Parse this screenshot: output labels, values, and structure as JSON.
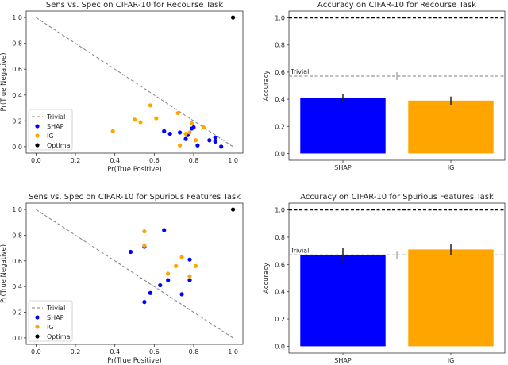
{
  "chart_data": [
    {
      "id": "scatter1",
      "type": "scatter",
      "title": "Sens vs. Spec on CIFAR-10 for Recourse Task",
      "xlabel": "Pr(True Positive)",
      "ylabel": "Pr(True Negative)",
      "xlim": [
        -0.05,
        1.05
      ],
      "ylim": [
        -0.05,
        1.05
      ],
      "xticks": [
        0.0,
        0.2,
        0.4,
        0.6,
        0.8,
        1.0
      ],
      "yticks": [
        0.0,
        0.2,
        0.4,
        0.6,
        0.8,
        1.0
      ],
      "xtick_labels": [
        "0.0",
        "0.2",
        "0.4",
        "0.6",
        "0.8",
        "1.0"
      ],
      "ytick_labels": [
        "0.0",
        "0.2",
        "0.4",
        "0.6",
        "0.8",
        "1.0"
      ],
      "legend_position": "bottom-left",
      "trivial": {
        "name": "Trivial",
        "x": [
          0,
          1
        ],
        "y": [
          1,
          0
        ],
        "color": "#808080"
      },
      "series": [
        {
          "name": "SHAP",
          "color": "#0000ff",
          "points": [
            [
              0.65,
              0.12
            ],
            [
              0.68,
              0.1
            ],
            [
              0.73,
              0.11
            ],
            [
              0.76,
              0.06
            ],
            [
              0.77,
              0.09
            ],
            [
              0.79,
              0.14
            ],
            [
              0.8,
              0.15
            ],
            [
              0.82,
              0.01
            ],
            [
              0.88,
              0.05
            ],
            [
              0.91,
              0.04
            ],
            [
              0.91,
              0.07
            ],
            [
              0.94,
              0.0
            ]
          ]
        },
        {
          "name": "IG",
          "color": "#ffa500",
          "points": [
            [
              0.39,
              0.12
            ],
            [
              0.5,
              0.21
            ],
            [
              0.53,
              0.19
            ],
            [
              0.58,
              0.32
            ],
            [
              0.61,
              0.22
            ],
            [
              0.72,
              0.26
            ],
            [
              0.73,
              0.01
            ],
            [
              0.76,
              0.1
            ],
            [
              0.78,
              0.11
            ],
            [
              0.79,
              0.18
            ],
            [
              0.81,
              0.05
            ],
            [
              0.85,
              0.15
            ]
          ]
        },
        {
          "name": "Optimal",
          "color": "#000000",
          "points": [
            [
              1.0,
              1.0
            ]
          ]
        }
      ]
    },
    {
      "id": "bar1",
      "type": "bar",
      "title": "Accuracy on CIFAR-10 for Recourse Task",
      "xlabel": "",
      "ylabel": "Accuracy",
      "ylim": [
        -0.05,
        1.05
      ],
      "yticks": [
        0.0,
        0.2,
        0.4,
        0.6,
        0.8,
        1.0
      ],
      "ytick_labels": [
        "0.0",
        "0.2",
        "0.4",
        "0.6",
        "0.8",
        "1.0"
      ],
      "categories": [
        "SHAP",
        "IG"
      ],
      "values": [
        0.41,
        0.39
      ],
      "errors": [
        0.03,
        0.03
      ],
      "colors": [
        "#0000ff",
        "#ffa500"
      ],
      "trivial": {
        "label": "Trivial",
        "value": 0.57
      },
      "optimal": 1.0
    },
    {
      "id": "scatter2",
      "type": "scatter",
      "title": "Sens vs. Spec on CIFAR-10 for Spurious Features Task",
      "xlabel": "Pr(True Positive)",
      "ylabel": "Pr(True Negative)",
      "xlim": [
        -0.05,
        1.05
      ],
      "ylim": [
        -0.05,
        1.05
      ],
      "xticks": [
        0.0,
        0.2,
        0.4,
        0.6,
        0.8,
        1.0
      ],
      "yticks": [
        0.0,
        0.2,
        0.4,
        0.6,
        0.8,
        1.0
      ],
      "xtick_labels": [
        "0.0",
        "0.2",
        "0.4",
        "0.6",
        "0.8",
        "1.0"
      ],
      "ytick_labels": [
        "0.0",
        "0.2",
        "0.4",
        "0.6",
        "0.8",
        "1.0"
      ],
      "legend_position": "bottom-left",
      "trivial": {
        "name": "Trivial",
        "x": [
          0,
          1
        ],
        "y": [
          1,
          0
        ],
        "color": "#808080"
      },
      "series": [
        {
          "name": "SHAP",
          "color": "#0000ff",
          "points": [
            [
              0.48,
              0.67
            ],
            [
              0.55,
              0.28
            ],
            [
              0.55,
              0.71
            ],
            [
              0.58,
              0.35
            ],
            [
              0.63,
              0.41
            ],
            [
              0.65,
              0.84
            ],
            [
              0.67,
              0.45
            ],
            [
              0.74,
              0.34
            ],
            [
              0.78,
              0.45
            ],
            [
              0.78,
              0.61
            ]
          ]
        },
        {
          "name": "IG",
          "color": "#ffa500",
          "points": [
            [
              0.55,
              0.72
            ],
            [
              0.55,
              0.83
            ],
            [
              0.67,
              0.5
            ],
            [
              0.71,
              0.56
            ],
            [
              0.74,
              0.63
            ],
            [
              0.78,
              0.48
            ],
            [
              0.81,
              0.56
            ]
          ]
        },
        {
          "name": "Optimal",
          "color": "#000000",
          "points": [
            [
              1.0,
              1.0
            ]
          ]
        }
      ]
    },
    {
      "id": "bar2",
      "type": "bar",
      "title": "Accuracy on CIFAR-10 for Spurious Features Task",
      "xlabel": "",
      "ylabel": "Accuracy",
      "ylim": [
        -0.05,
        1.05
      ],
      "yticks": [
        0.0,
        0.2,
        0.4,
        0.6,
        0.8,
        1.0
      ],
      "ytick_labels": [
        "0.0",
        "0.2",
        "0.4",
        "0.6",
        "0.8",
        "1.0"
      ],
      "categories": [
        "SHAP",
        "IG"
      ],
      "values": [
        0.67,
        0.71
      ],
      "errors": [
        0.05,
        0.04
      ],
      "colors": [
        "#0000ff",
        "#ffa500"
      ],
      "trivial": {
        "label": "Trivial",
        "value": 0.67
      },
      "optimal": 1.0
    }
  ]
}
